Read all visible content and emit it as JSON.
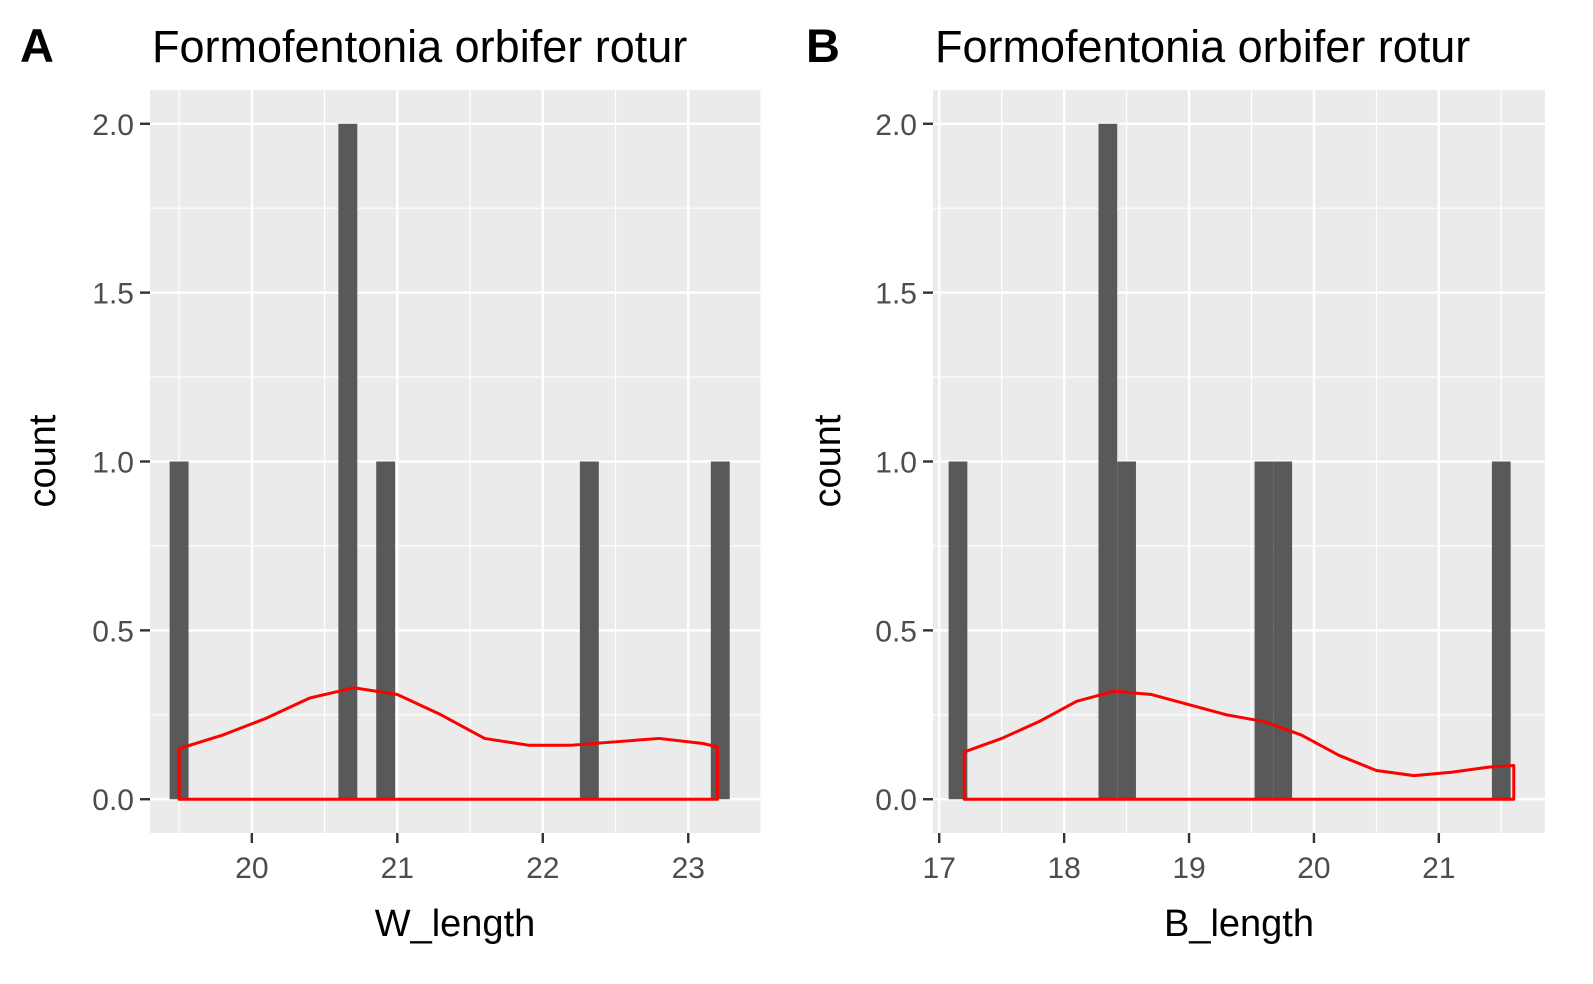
{
  "chart_data": [
    {
      "type": "bar",
      "panel_label": "A",
      "title": "Formofentonia orbifer rotur",
      "xlabel": "W_length",
      "ylabel": "count",
      "xlim": [
        19.3,
        23.5
      ],
      "ylim": [
        -0.1,
        2.1
      ],
      "x_ticks": [
        20,
        21,
        22,
        23
      ],
      "x_tick_labels": [
        "20",
        "21",
        "22",
        "23"
      ],
      "y_ticks": [
        0.0,
        0.5,
        1.0,
        1.5,
        2.0
      ],
      "y_tick_labels": [
        "0.0",
        "0.5",
        "1.0",
        "1.5",
        "2.0"
      ],
      "grid": true,
      "bar_color": "#595959",
      "bars": [
        {
          "x": 19.5,
          "count": 1
        },
        {
          "x": 20.66,
          "count": 2
        },
        {
          "x": 20.92,
          "count": 1
        },
        {
          "x": 22.32,
          "count": 1
        },
        {
          "x": 23.22,
          "count": 1
        }
      ],
      "bar_width": 0.13,
      "density_color": "#ff0000",
      "density": {
        "x": [
          19.5,
          19.8,
          20.1,
          20.4,
          20.7,
          21.0,
          21.3,
          21.6,
          21.9,
          22.2,
          22.5,
          22.8,
          23.1,
          23.2
        ],
        "y": [
          0.15,
          0.19,
          0.24,
          0.3,
          0.33,
          0.31,
          0.25,
          0.18,
          0.16,
          0.16,
          0.17,
          0.18,
          0.165,
          0.155
        ]
      }
    },
    {
      "type": "bar",
      "panel_label": "B",
      "title": "Formofentonia orbifer rotur",
      "xlabel": "B_length",
      "ylabel": "count",
      "xlim": [
        16.95,
        21.85
      ],
      "ylim": [
        -0.1,
        2.1
      ],
      "x_ticks": [
        17,
        18,
        19,
        20,
        21
      ],
      "x_tick_labels": [
        "17",
        "18",
        "19",
        "20",
        "21"
      ],
      "y_ticks": [
        0.0,
        0.5,
        1.0,
        1.5,
        2.0
      ],
      "y_tick_labels": [
        "0.0",
        "0.5",
        "1.0",
        "1.5",
        "2.0"
      ],
      "grid": true,
      "bar_color": "#595959",
      "bars": [
        {
          "x": 17.15,
          "count": 1
        },
        {
          "x": 18.35,
          "count": 2
        },
        {
          "x": 18.5,
          "count": 1
        },
        {
          "x": 19.6,
          "count": 1
        },
        {
          "x": 19.75,
          "count": 1
        },
        {
          "x": 21.5,
          "count": 1
        }
      ],
      "bar_width": 0.15,
      "density_color": "#ff0000",
      "density": {
        "x": [
          17.2,
          17.5,
          17.8,
          18.1,
          18.4,
          18.7,
          19.0,
          19.3,
          19.6,
          19.9,
          20.2,
          20.5,
          20.8,
          21.1,
          21.4,
          21.6
        ],
        "y": [
          0.14,
          0.18,
          0.23,
          0.29,
          0.32,
          0.31,
          0.28,
          0.25,
          0.23,
          0.19,
          0.13,
          0.085,
          0.07,
          0.08,
          0.095,
          0.1
        ]
      }
    }
  ]
}
